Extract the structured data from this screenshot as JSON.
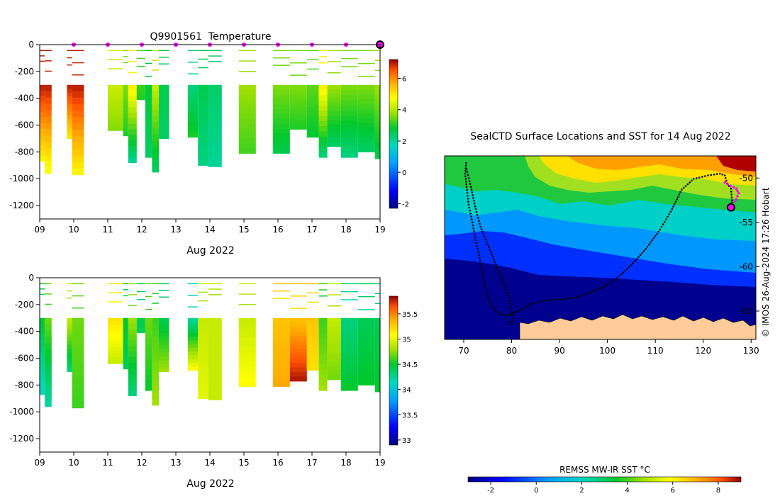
{
  "chart_data": [
    {
      "type": "heatmap",
      "name": "temperature-section",
      "title": "Q9901561  Temperature",
      "xlabel": "Aug 2022",
      "ylabel": "",
      "xlim": [
        9,
        19
      ],
      "ylim": [
        -1300,
        0
      ],
      "x_ticks": [
        "09",
        "10",
        "11",
        "12",
        "13",
        "14",
        "15",
        "16",
        "17",
        "18",
        "19"
      ],
      "y_ticks": [
        0,
        -200,
        -400,
        -600,
        -800,
        -1000,
        -1200
      ],
      "colorbar": {
        "min": -2.3,
        "max": 7.2,
        "ticks": [
          -2,
          0,
          2,
          4,
          6
        ]
      },
      "surface_markers_x": [
        10,
        11,
        12,
        13,
        14,
        15,
        16,
        17,
        18
      ],
      "end_marker_x": 19,
      "profiles": [
        {
          "x0": 9.0,
          "x1": 9.15,
          "deep": -870,
          "top_value": 7.0,
          "bottom_value": 4.8
        },
        {
          "x0": 9.15,
          "x1": 9.35,
          "deep": -960,
          "top_value": 7.0,
          "bottom_value": 4.6
        },
        {
          "x0": 9.8,
          "x1": 9.95,
          "deep": -700,
          "top_value": 7.0,
          "bottom_value": 5.0
        },
        {
          "x0": 9.95,
          "x1": 10.3,
          "deep": -970,
          "top_value": 7.0,
          "bottom_value": 4.8
        },
        {
          "x0": 11.0,
          "x1": 11.45,
          "deep": -640,
          "top_value": 4.2,
          "bottom_value": 3.6
        },
        {
          "x0": 11.45,
          "x1": 11.6,
          "deep": -680,
          "top_value": 3.6,
          "bottom_value": 3.0
        },
        {
          "x0": 11.6,
          "x1": 11.85,
          "deep": -880,
          "top_value": 5.0,
          "bottom_value": 2.0
        },
        {
          "x0": 11.85,
          "x1": 12.1,
          "deep": -410,
          "top_value": 3.2,
          "bottom_value": 3.0
        },
        {
          "x0": 12.1,
          "x1": 12.3,
          "deep": -840,
          "top_value": 2.8,
          "bottom_value": 2.4
        },
        {
          "x0": 12.3,
          "x1": 12.5,
          "deep": -950,
          "top_value": 4.2,
          "bottom_value": 2.4
        },
        {
          "x0": 12.5,
          "x1": 12.8,
          "deep": -700,
          "top_value": 2.6,
          "bottom_value": 2.4
        },
        {
          "x0": 13.35,
          "x1": 13.65,
          "deep": -690,
          "top_value": 2.2,
          "bottom_value": 3.0
        },
        {
          "x0": 13.65,
          "x1": 13.95,
          "deep": -900,
          "top_value": 2.6,
          "bottom_value": 2.2
        },
        {
          "x0": 13.95,
          "x1": 14.35,
          "deep": -910,
          "top_value": 2.4,
          "bottom_value": 2.0
        },
        {
          "x0": 14.85,
          "x1": 15.35,
          "deep": -810,
          "top_value": 3.8,
          "bottom_value": 3.2
        },
        {
          "x0": 15.85,
          "x1": 16.35,
          "deep": -810,
          "top_value": 3.6,
          "bottom_value": 2.6
        },
        {
          "x0": 16.35,
          "x1": 16.85,
          "deep": -630,
          "top_value": 3.6,
          "bottom_value": 3.0
        },
        {
          "x0": 16.85,
          "x1": 17.2,
          "deep": -690,
          "top_value": 3.4,
          "bottom_value": 2.8
        },
        {
          "x0": 17.2,
          "x1": 17.45,
          "deep": -840,
          "top_value": 5.0,
          "bottom_value": 2.2
        },
        {
          "x0": 17.45,
          "x1": 17.85,
          "deep": -760,
          "top_value": 3.8,
          "bottom_value": 2.4
        },
        {
          "x0": 17.85,
          "x1": 18.35,
          "deep": -840,
          "top_value": 3.6,
          "bottom_value": 2.2
        },
        {
          "x0": 18.35,
          "x1": 18.85,
          "deep": -800,
          "top_value": 3.6,
          "bottom_value": 2.4
        },
        {
          "x0": 18.85,
          "x1": 19.0,
          "deep": -850,
          "top_value": 3.8,
          "bottom_value": 2.6
        }
      ]
    },
    {
      "type": "heatmap",
      "name": "salinity-section",
      "title": "",
      "xlabel": "Aug 2022",
      "ylabel": "",
      "xlim": [
        9,
        19
      ],
      "ylim": [
        -1300,
        0
      ],
      "x_ticks": [
        "09",
        "10",
        "11",
        "12",
        "13",
        "14",
        "15",
        "16",
        "17",
        "18",
        "19"
      ],
      "y_ticks": [
        0,
        -200,
        -400,
        -600,
        -800,
        -1000,
        -1200
      ],
      "colorbar": {
        "min": 32.9,
        "max": 35.85,
        "ticks": [
          33,
          33.5,
          34,
          34.5,
          35,
          35.5
        ]
      },
      "profiles": [
        {
          "x0": 9.0,
          "x1": 9.15,
          "deep": -870,
          "top_value": 34.5,
          "bottom_value": 34.1
        },
        {
          "x0": 9.15,
          "x1": 9.35,
          "deep": -960,
          "top_value": 34.7,
          "bottom_value": 34.2
        },
        {
          "x0": 9.8,
          "x1": 9.95,
          "deep": -700,
          "top_value": 34.9,
          "bottom_value": 34.3
        },
        {
          "x0": 9.95,
          "x1": 10.3,
          "deep": -970,
          "top_value": 34.7,
          "bottom_value": 34.6
        },
        {
          "x0": 11.0,
          "x1": 11.45,
          "deep": -640,
          "top_value": 35.2,
          "bottom_value": 34.9
        },
        {
          "x0": 11.45,
          "x1": 11.6,
          "deep": -680,
          "top_value": 34.5,
          "bottom_value": 34.4
        },
        {
          "x0": 11.6,
          "x1": 11.85,
          "deep": -880,
          "top_value": 34.8,
          "bottom_value": 34.3
        },
        {
          "x0": 11.85,
          "x1": 12.1,
          "deep": -410,
          "top_value": 34.4,
          "bottom_value": 34.4
        },
        {
          "x0": 12.1,
          "x1": 12.3,
          "deep": -840,
          "top_value": 34.7,
          "bottom_value": 34.5
        },
        {
          "x0": 12.3,
          "x1": 12.5,
          "deep": -950,
          "top_value": 34.6,
          "bottom_value": 34.8
        },
        {
          "x0": 12.5,
          "x1": 12.8,
          "deep": -700,
          "top_value": 34.4,
          "bottom_value": 34.8
        },
        {
          "x0": 13.35,
          "x1": 13.65,
          "deep": -690,
          "top_value": 34.2,
          "bottom_value": 35.1
        },
        {
          "x0": 13.65,
          "x1": 13.95,
          "deep": -900,
          "top_value": 34.9,
          "bottom_value": 35.0
        },
        {
          "x0": 13.95,
          "x1": 14.35,
          "deep": -910,
          "top_value": 34.9,
          "bottom_value": 34.9
        },
        {
          "x0": 14.85,
          "x1": 15.35,
          "deep": -810,
          "top_value": 34.9,
          "bottom_value": 35.1
        },
        {
          "x0": 15.85,
          "x1": 16.35,
          "deep": -810,
          "top_value": 35.3,
          "bottom_value": 35.4
        },
        {
          "x0": 16.35,
          "x1": 16.85,
          "deep": -770,
          "top_value": 35.3,
          "bottom_value": 35.8
        },
        {
          "x0": 16.85,
          "x1": 17.2,
          "deep": -690,
          "top_value": 35.3,
          "bottom_value": 35.2
        },
        {
          "x0": 17.2,
          "x1": 17.45,
          "deep": -840,
          "top_value": 34.6,
          "bottom_value": 34.8
        },
        {
          "x0": 17.45,
          "x1": 17.85,
          "deep": -760,
          "top_value": 34.9,
          "bottom_value": 34.7
        },
        {
          "x0": 17.85,
          "x1": 18.35,
          "deep": -840,
          "top_value": 34.3,
          "bottom_value": 34.5
        },
        {
          "x0": 18.35,
          "x1": 18.85,
          "deep": -800,
          "top_value": 34.4,
          "bottom_value": 34.5
        },
        {
          "x0": 18.85,
          "x1": 19.0,
          "deep": -850,
          "top_value": 34.4,
          "bottom_value": 34.5
        }
      ]
    },
    {
      "type": "heatmap",
      "name": "sst-map",
      "title": "SealCTD Surface Locations and SST for 14 Aug 2022",
      "xlabel": "",
      "ylabel": "",
      "xlim": [
        66,
        131
      ],
      "ylim": [
        -68.2,
        -47.5
      ],
      "x_ticks": [
        70,
        80,
        90,
        100,
        110,
        120,
        130
      ],
      "y_ticks": [
        -50,
        -55,
        -60,
        -65
      ],
      "colorbar": {
        "label": "REMSS MW-IR SST °C",
        "min": -3.0,
        "max": 9.0,
        "ticks": [
          -2,
          0,
          2,
          4,
          6,
          8
        ]
      },
      "track": [
        [
          70.5,
          -48.3
        ],
        [
          70.3,
          -49.5
        ],
        [
          70.6,
          -51.0
        ],
        [
          71.0,
          -53.0
        ],
        [
          71.8,
          -55.0
        ],
        [
          72.5,
          -57.0
        ],
        [
          73.3,
          -59.0
        ],
        [
          74.0,
          -61.0
        ],
        [
          74.8,
          -63.0
        ],
        [
          75.8,
          -64.5
        ],
        [
          77.5,
          -65.3
        ],
        [
          79.0,
          -65.5
        ],
        [
          80.5,
          -65.2
        ],
        [
          82.0,
          -64.8
        ],
        [
          84.0,
          -64.2
        ],
        [
          87.0,
          -63.8
        ],
        [
          90.0,
          -63.7
        ],
        [
          93.0,
          -63.5
        ],
        [
          96.0,
          -63.0
        ],
        [
          99.0,
          -62.3
        ],
        [
          102.0,
          -61.3
        ],
        [
          105.0,
          -59.8
        ],
        [
          108.0,
          -58.0
        ],
        [
          111.0,
          -55.8
        ],
        [
          113.5,
          -53.5
        ],
        [
          115.5,
          -51.3
        ],
        [
          118.0,
          -50.1
        ],
        [
          121.0,
          -49.7
        ],
        [
          123.5,
          -49.5
        ],
        [
          124.5,
          -49.7
        ],
        [
          125.0,
          -50.6
        ],
        [
          125.8,
          -51.2
        ],
        [
          126.0,
          -52.5
        ],
        [
          126.0,
          -53.3
        ]
      ],
      "track_return": [
        [
          70.6,
          -49.0
        ],
        [
          71.5,
          -51.0
        ],
        [
          72.5,
          -53.5
        ],
        [
          73.5,
          -55.5
        ],
        [
          75.0,
          -57.5
        ],
        [
          76.5,
          -59.5
        ],
        [
          78.0,
          -61.5
        ],
        [
          79.5,
          -63.5
        ],
        [
          80.2,
          -65.8
        ],
        [
          80.0,
          -66.5
        ],
        [
          79.0,
          -66.0
        ]
      ],
      "recent_track": [
        [
          124.5,
          -50.5
        ],
        [
          125.7,
          -50.9
        ],
        [
          126.9,
          -51.2
        ],
        [
          127.4,
          -51.7
        ],
        [
          126.9,
          -52.4
        ],
        [
          126.2,
          -52.9
        ]
      ],
      "last_position": [
        125.8,
        -53.3
      ],
      "copyright": "© IMOS 26-Aug-2024 17:26 Hobart"
    }
  ]
}
